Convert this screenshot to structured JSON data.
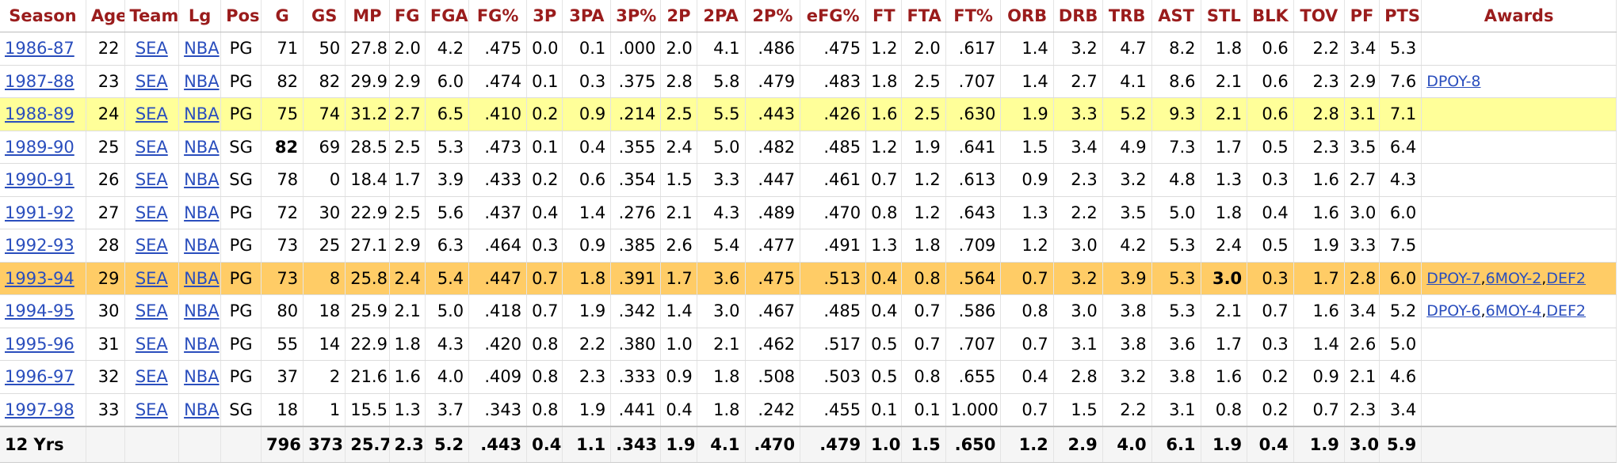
{
  "columns": [
    "Season",
    "Age",
    "Team",
    "Lg",
    "Pos",
    "G",
    "GS",
    "MP",
    "FG",
    "FGA",
    "FG%",
    "3P",
    "3PA",
    "3P%",
    "2P",
    "2PA",
    "2P%",
    "eFG%",
    "FT",
    "FTA",
    "FT%",
    "ORB",
    "DRB",
    "TRB",
    "AST",
    "STL",
    "BLK",
    "TOV",
    "PF",
    "PTS",
    "Awards"
  ],
  "rows": [
    {
      "season": "1986-87",
      "age": "22",
      "team": "SEA",
      "lg": "NBA",
      "pos": "PG",
      "g": "71",
      "gs": "50",
      "mp": "27.8",
      "fg": "2.0",
      "fga": "4.2",
      "fg_pct": ".475",
      "p3": "0.0",
      "pa3": "0.1",
      "p3_pct": ".000",
      "p2": "2.0",
      "pa2": "4.1",
      "p2_pct": ".486",
      "efg": ".475",
      "ft": "1.2",
      "fta": "2.0",
      "ft_pct": ".617",
      "orb": "1.4",
      "drb": "3.2",
      "trb": "4.7",
      "ast": "8.2",
      "stl": "1.8",
      "blk": "0.6",
      "tov": "2.2",
      "pf": "3.4",
      "pts": "5.3",
      "awards": []
    },
    {
      "season": "1987-88",
      "age": "23",
      "team": "SEA",
      "lg": "NBA",
      "pos": "PG",
      "g": "82",
      "gs": "82",
      "mp": "29.9",
      "fg": "2.9",
      "fga": "6.0",
      "fg_pct": ".474",
      "p3": "0.1",
      "pa3": "0.3",
      "p3_pct": ".375",
      "p2": "2.8",
      "pa2": "5.8",
      "p2_pct": ".479",
      "efg": ".483",
      "ft": "1.8",
      "fta": "2.5",
      "ft_pct": ".707",
      "orb": "1.4",
      "drb": "2.7",
      "trb": "4.1",
      "ast": "8.6",
      "stl": "2.1",
      "blk": "0.6",
      "tov": "2.3",
      "pf": "2.9",
      "pts": "7.6",
      "awards": [
        "DPOY-8"
      ]
    },
    {
      "season": "1988-89",
      "age": "24",
      "team": "SEA",
      "lg": "NBA",
      "pos": "PG",
      "g": "75",
      "gs": "74",
      "mp": "31.2",
      "fg": "2.7",
      "fga": "6.5",
      "fg_pct": ".410",
      "p3": "0.2",
      "pa3": "0.9",
      "p3_pct": ".214",
      "p2": "2.5",
      "pa2": "5.5",
      "p2_pct": ".443",
      "efg": ".426",
      "ft": "1.6",
      "fta": "2.5",
      "ft_pct": ".630",
      "orb": "1.9",
      "drb": "3.3",
      "trb": "5.2",
      "ast": "9.3",
      "stl": "2.1",
      "blk": "0.6",
      "tov": "2.8",
      "pf": "3.1",
      "pts": "7.1",
      "awards": [],
      "highlight": "yellow"
    },
    {
      "season": "1989-90",
      "age": "25",
      "team": "SEA",
      "lg": "NBA",
      "pos": "SG",
      "g": "82",
      "gs": "69",
      "mp": "28.5",
      "fg": "2.5",
      "fga": "5.3",
      "fg_pct": ".473",
      "p3": "0.1",
      "pa3": "0.4",
      "p3_pct": ".355",
      "p2": "2.4",
      "pa2": "5.0",
      "p2_pct": ".482",
      "efg": ".485",
      "ft": "1.2",
      "fta": "1.9",
      "ft_pct": ".641",
      "orb": "1.5",
      "drb": "3.4",
      "trb": "4.9",
      "ast": "7.3",
      "stl": "1.7",
      "blk": "0.5",
      "tov": "2.3",
      "pf": "3.5",
      "pts": "6.4",
      "awards": [],
      "bold": [
        "g"
      ]
    },
    {
      "season": "1990-91",
      "age": "26",
      "team": "SEA",
      "lg": "NBA",
      "pos": "SG",
      "g": "78",
      "gs": "0",
      "mp": "18.4",
      "fg": "1.7",
      "fga": "3.9",
      "fg_pct": ".433",
      "p3": "0.2",
      "pa3": "0.6",
      "p3_pct": ".354",
      "p2": "1.5",
      "pa2": "3.3",
      "p2_pct": ".447",
      "efg": ".461",
      "ft": "0.7",
      "fta": "1.2",
      "ft_pct": ".613",
      "orb": "0.9",
      "drb": "2.3",
      "trb": "3.2",
      "ast": "4.8",
      "stl": "1.3",
      "blk": "0.3",
      "tov": "1.6",
      "pf": "2.7",
      "pts": "4.3",
      "awards": []
    },
    {
      "season": "1991-92",
      "age": "27",
      "team": "SEA",
      "lg": "NBA",
      "pos": "PG",
      "g": "72",
      "gs": "30",
      "mp": "22.9",
      "fg": "2.5",
      "fga": "5.6",
      "fg_pct": ".437",
      "p3": "0.4",
      "pa3": "1.4",
      "p3_pct": ".276",
      "p2": "2.1",
      "pa2": "4.3",
      "p2_pct": ".489",
      "efg": ".470",
      "ft": "0.8",
      "fta": "1.2",
      "ft_pct": ".643",
      "orb": "1.3",
      "drb": "2.2",
      "trb": "3.5",
      "ast": "5.0",
      "stl": "1.8",
      "blk": "0.4",
      "tov": "1.6",
      "pf": "3.0",
      "pts": "6.0",
      "awards": []
    },
    {
      "season": "1992-93",
      "age": "28",
      "team": "SEA",
      "lg": "NBA",
      "pos": "PG",
      "g": "73",
      "gs": "25",
      "mp": "27.1",
      "fg": "2.9",
      "fga": "6.3",
      "fg_pct": ".464",
      "p3": "0.3",
      "pa3": "0.9",
      "p3_pct": ".385",
      "p2": "2.6",
      "pa2": "5.4",
      "p2_pct": ".477",
      "efg": ".491",
      "ft": "1.3",
      "fta": "1.8",
      "ft_pct": ".709",
      "orb": "1.2",
      "drb": "3.0",
      "trb": "4.2",
      "ast": "5.3",
      "stl": "2.4",
      "blk": "0.5",
      "tov": "1.9",
      "pf": "3.3",
      "pts": "7.5",
      "awards": []
    },
    {
      "season": "1993-94",
      "age": "29",
      "team": "SEA",
      "lg": "NBA",
      "pos": "PG",
      "g": "73",
      "gs": "8",
      "mp": "25.8",
      "fg": "2.4",
      "fga": "5.4",
      "fg_pct": ".447",
      "p3": "0.7",
      "pa3": "1.8",
      "p3_pct": ".391",
      "p2": "1.7",
      "pa2": "3.6",
      "p2_pct": ".475",
      "efg": ".513",
      "ft": "0.4",
      "fta": "0.8",
      "ft_pct": ".564",
      "orb": "0.7",
      "drb": "3.2",
      "trb": "3.9",
      "ast": "5.3",
      "stl": "3.0",
      "blk": "0.3",
      "tov": "1.7",
      "pf": "2.8",
      "pts": "6.0",
      "awards": [
        "DPOY-7",
        "6MOY-2",
        "DEF2"
      ],
      "highlight": "orange",
      "bold": [
        "stl"
      ]
    },
    {
      "season": "1994-95",
      "age": "30",
      "team": "SEA",
      "lg": "NBA",
      "pos": "PG",
      "g": "80",
      "gs": "18",
      "mp": "25.9",
      "fg": "2.1",
      "fga": "5.0",
      "fg_pct": ".418",
      "p3": "0.7",
      "pa3": "1.9",
      "p3_pct": ".342",
      "p2": "1.4",
      "pa2": "3.0",
      "p2_pct": ".467",
      "efg": ".485",
      "ft": "0.4",
      "fta": "0.7",
      "ft_pct": ".586",
      "orb": "0.8",
      "drb": "3.0",
      "trb": "3.8",
      "ast": "5.3",
      "stl": "2.1",
      "blk": "0.7",
      "tov": "1.6",
      "pf": "3.4",
      "pts": "5.2",
      "awards": [
        "DPOY-6",
        "6MOY-4",
        "DEF2"
      ]
    },
    {
      "season": "1995-96",
      "age": "31",
      "team": "SEA",
      "lg": "NBA",
      "pos": "PG",
      "g": "55",
      "gs": "14",
      "mp": "22.9",
      "fg": "1.8",
      "fga": "4.3",
      "fg_pct": ".420",
      "p3": "0.8",
      "pa3": "2.2",
      "p3_pct": ".380",
      "p2": "1.0",
      "pa2": "2.1",
      "p2_pct": ".462",
      "efg": ".517",
      "ft": "0.5",
      "fta": "0.7",
      "ft_pct": ".707",
      "orb": "0.7",
      "drb": "3.1",
      "trb": "3.8",
      "ast": "3.6",
      "stl": "1.7",
      "blk": "0.3",
      "tov": "1.4",
      "pf": "2.6",
      "pts": "5.0",
      "awards": []
    },
    {
      "season": "1996-97",
      "age": "32",
      "team": "SEA",
      "lg": "NBA",
      "pos": "PG",
      "g": "37",
      "gs": "2",
      "mp": "21.6",
      "fg": "1.6",
      "fga": "4.0",
      "fg_pct": ".409",
      "p3": "0.8",
      "pa3": "2.3",
      "p3_pct": ".333",
      "p2": "0.9",
      "pa2": "1.8",
      "p2_pct": ".508",
      "efg": ".503",
      "ft": "0.5",
      "fta": "0.8",
      "ft_pct": ".655",
      "orb": "0.4",
      "drb": "2.8",
      "trb": "3.2",
      "ast": "3.8",
      "stl": "1.6",
      "blk": "0.2",
      "tov": "0.9",
      "pf": "2.1",
      "pts": "4.6",
      "awards": []
    },
    {
      "season": "1997-98",
      "age": "33",
      "team": "SEA",
      "lg": "NBA",
      "pos": "SG",
      "g": "18",
      "gs": "1",
      "mp": "15.5",
      "fg": "1.3",
      "fga": "3.7",
      "fg_pct": ".343",
      "p3": "0.8",
      "pa3": "1.9",
      "p3_pct": ".441",
      "p2": "0.4",
      "pa2": "1.8",
      "p2_pct": ".242",
      "efg": ".455",
      "ft": "0.1",
      "fta": "0.1",
      "ft_pct": "1.000",
      "orb": "0.7",
      "drb": "1.5",
      "trb": "2.2",
      "ast": "3.1",
      "stl": "0.8",
      "blk": "0.2",
      "tov": "0.7",
      "pf": "2.3",
      "pts": "3.4",
      "awards": []
    }
  ],
  "totals": {
    "season": "12 Yrs",
    "age": "",
    "team": "",
    "lg": "",
    "pos": "",
    "g": "796",
    "gs": "373",
    "mp": "25.7",
    "fg": "2.3",
    "fga": "5.2",
    "fg_pct": ".443",
    "p3": "0.4",
    "pa3": "1.1",
    "p3_pct": ".343",
    "p2": "1.9",
    "pa2": "4.1",
    "p2_pct": ".470",
    "efg": ".479",
    "ft": "1.0",
    "fta": "1.5",
    "ft_pct": ".650",
    "orb": "1.2",
    "drb": "2.9",
    "trb": "4.0",
    "ast": "6.1",
    "stl": "1.9",
    "blk": "0.4",
    "tov": "1.9",
    "pf": "3.0",
    "pts": "5.9"
  },
  "colors": {
    "header_text": "#9a1c1c",
    "link": "#2a4ebd",
    "highlight_yellow": "#ffff99",
    "highlight_orange": "#ffcc66"
  }
}
